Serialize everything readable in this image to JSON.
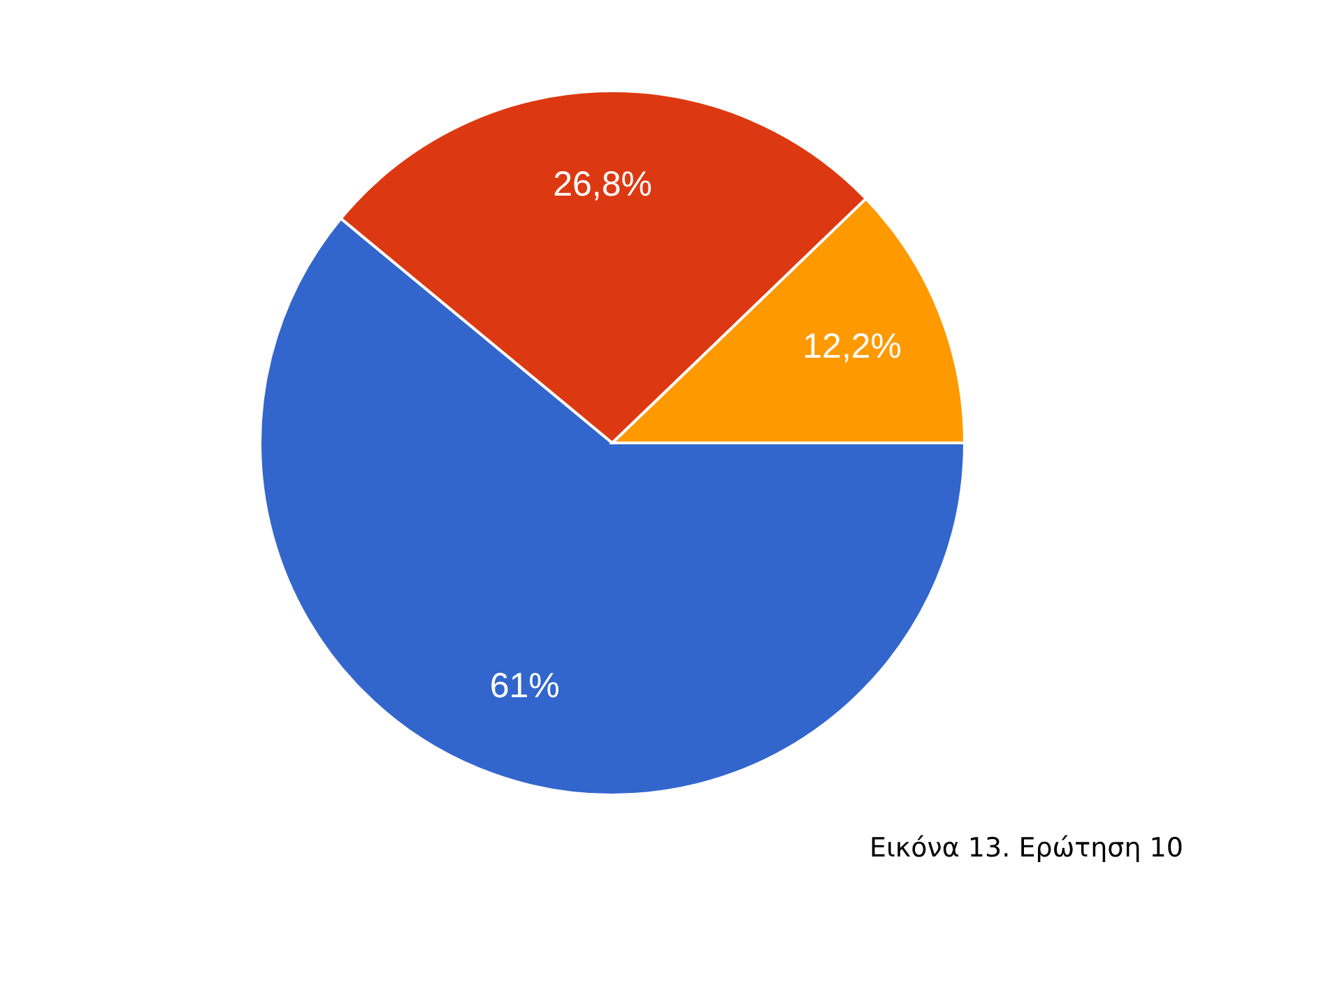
{
  "chart_data": {
    "type": "pie",
    "categories": [
      null,
      null,
      null
    ],
    "values": [
      61,
      26.8,
      12.2
    ],
    "value_labels": [
      "61%",
      "26,8%",
      "12,2%"
    ],
    "colors": [
      "#3366cc",
      "#dc3912",
      "#ff9900"
    ],
    "annotations": [
      "Εικόνα 13. Ερώτηση 10"
    ]
  }
}
